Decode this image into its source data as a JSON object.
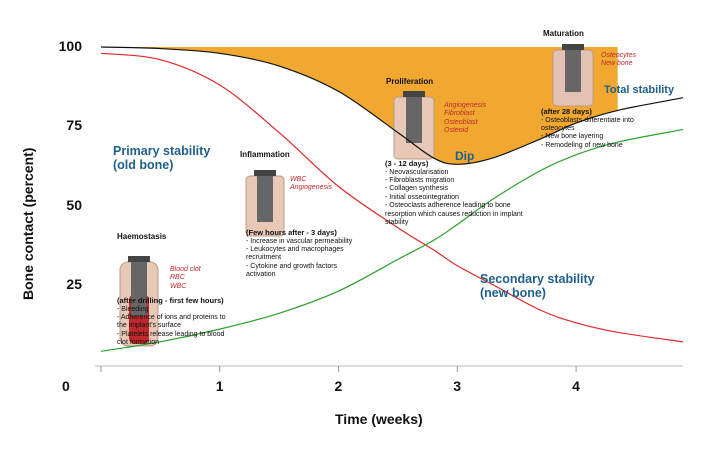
{
  "chart_data": {
    "type": "line",
    "x_label": "Time (weeks)",
    "y_label": "Bone contact (percent)",
    "xlim": [
      -0.05,
      4.9
    ],
    "ylim": [
      0,
      100
    ],
    "xticks": [
      0,
      1,
      2,
      3,
      4
    ],
    "yticks": [
      25,
      50,
      75,
      100
    ],
    "x": [
      0,
      0.5,
      1,
      1.5,
      2,
      2.5,
      2.8,
      3,
      3.3,
      3.7,
      4,
      4.35,
      4.9
    ],
    "fill_color": "#f0a830",
    "series": [
      {
        "name": "Total stability",
        "color": "#111111",
        "values": [
          100,
          99.5,
          98,
          94,
          86,
          73,
          65,
          63,
          65,
          71,
          76,
          80,
          84
        ]
      },
      {
        "name": "Primary stability (old bone)",
        "color": "#e0282b",
        "values": [
          98,
          96,
          88,
          73,
          56,
          43,
          36,
          31,
          25,
          17,
          13,
          10,
          7
        ]
      },
      {
        "name": "Secondary stability (new bone)",
        "color": "#2aa02a",
        "values": [
          4,
          7,
          11,
          16,
          23,
          33,
          39,
          44,
          52,
          61,
          66,
          70,
          74
        ]
      }
    ],
    "annotations": [
      "Dip"
    ],
    "stages": [
      {
        "title": "Haemostasis",
        "labels": [
          "Blood clot",
          "RBC",
          "WBC"
        ],
        "timing": "(after drilling - first few hours)",
        "bullets": [
          "Bleeding",
          "Adherence of ions and proteins to the implant's surface",
          "Platelets release leading to blood clot formation"
        ]
      },
      {
        "title": "Inflammation",
        "labels": [
          "WBC",
          "Angiogenesis"
        ],
        "timing": "(Few hours after - 3 days)",
        "bullets": [
          "Increase in vascular permeability",
          "Leukocytes and macrophages recruitment",
          "Cytokine and growth factors activation"
        ]
      },
      {
        "title": "Proliferation",
        "labels": [
          "Angiogenesis",
          "Fibroblast",
          "Osteoblast",
          "Osteoid"
        ],
        "timing": "(3 - 12 days)",
        "bullets": [
          "Neovascularisation",
          "Fibroblasts migration",
          "Collagen synthesis",
          "Initial osseointegration",
          "Osteoclasts adherence leading to bone resorption which causes reduction in implant stability"
        ]
      },
      {
        "title": "Maturation",
        "labels": [
          "Osteocytes",
          "New bone"
        ],
        "timing": "(after 28 days)",
        "bullets": [
          "Osteoblasts differentiate into osteocytes",
          "New bone layering",
          "Remodeling of new bone"
        ]
      }
    ]
  }
}
